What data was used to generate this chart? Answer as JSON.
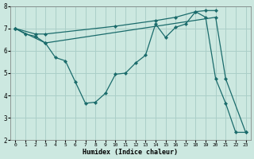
{
  "xlabel": "Humidex (Indice chaleur)",
  "ylabel": "",
  "background_color": "#cce8e0",
  "grid_color": "#aacfc8",
  "line_color": "#1a6b6b",
  "xlim": [
    -0.5,
    23.5
  ],
  "ylim": [
    2,
    8
  ],
  "xticks": [
    0,
    1,
    2,
    3,
    4,
    5,
    6,
    7,
    8,
    9,
    10,
    11,
    12,
    13,
    14,
    15,
    16,
    17,
    18,
    19,
    20,
    21,
    22,
    23
  ],
  "yticks": [
    2,
    3,
    4,
    5,
    6,
    7,
    8
  ],
  "line1_x": [
    0,
    2,
    3,
    10,
    14,
    16,
    18,
    19,
    20
  ],
  "line1_y": [
    7.0,
    6.75,
    6.75,
    7.1,
    7.35,
    7.5,
    7.75,
    7.8,
    7.8
  ],
  "line2_x": [
    0,
    1,
    2,
    3,
    4,
    5,
    6,
    7,
    8,
    9,
    10,
    11,
    12,
    13,
    14,
    15,
    16,
    17,
    18,
    19,
    20,
    21,
    22,
    23
  ],
  "line2_y": [
    7.0,
    6.75,
    6.65,
    6.35,
    5.7,
    5.55,
    4.6,
    3.65,
    3.7,
    4.1,
    4.95,
    5.0,
    5.45,
    5.8,
    7.2,
    6.6,
    7.05,
    7.2,
    7.75,
    7.5,
    4.75,
    3.65,
    2.35,
    2.35
  ],
  "line3_x": [
    0,
    3,
    20,
    21,
    23
  ],
  "line3_y": [
    7.0,
    6.35,
    7.5,
    4.75,
    2.35
  ]
}
